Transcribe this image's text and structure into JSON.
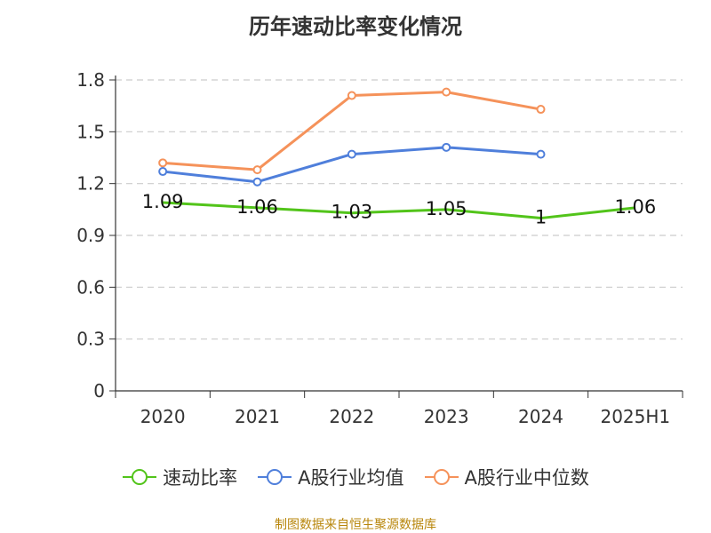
{
  "chart_data": {
    "type": "line",
    "title": "历年速动比率变化情况",
    "categories": [
      "2020",
      "2021",
      "2022",
      "2023",
      "2024",
      "2025H1"
    ],
    "y_ticks": [
      "0",
      "0.3",
      "0.6",
      "0.9",
      "1.2",
      "1.5",
      "1.8"
    ],
    "ylim": [
      0,
      1.8
    ],
    "grid": true,
    "legend_position": "bottom",
    "series": [
      {
        "name": "速动比率",
        "color": "#52c41a",
        "values": [
          1.09,
          1.06,
          1.03,
          1.05,
          1,
          1.06
        ],
        "labels": [
          "1.09",
          "1.06",
          "1.03",
          "1.05",
          "1",
          "1.06"
        ],
        "markers": false
      },
      {
        "name": "A股行业均值",
        "color": "#4f7fdb",
        "values": [
          1.27,
          1.21,
          1.37,
          1.41,
          1.37,
          null
        ],
        "markers": true
      },
      {
        "name": "A股行业中位数",
        "color": "#f5925a",
        "values": [
          1.32,
          1.28,
          1.71,
          1.73,
          1.63,
          null
        ],
        "markers": true
      }
    ]
  },
  "footer": {
    "source": "制图数据来自恒生聚源数据库"
  }
}
